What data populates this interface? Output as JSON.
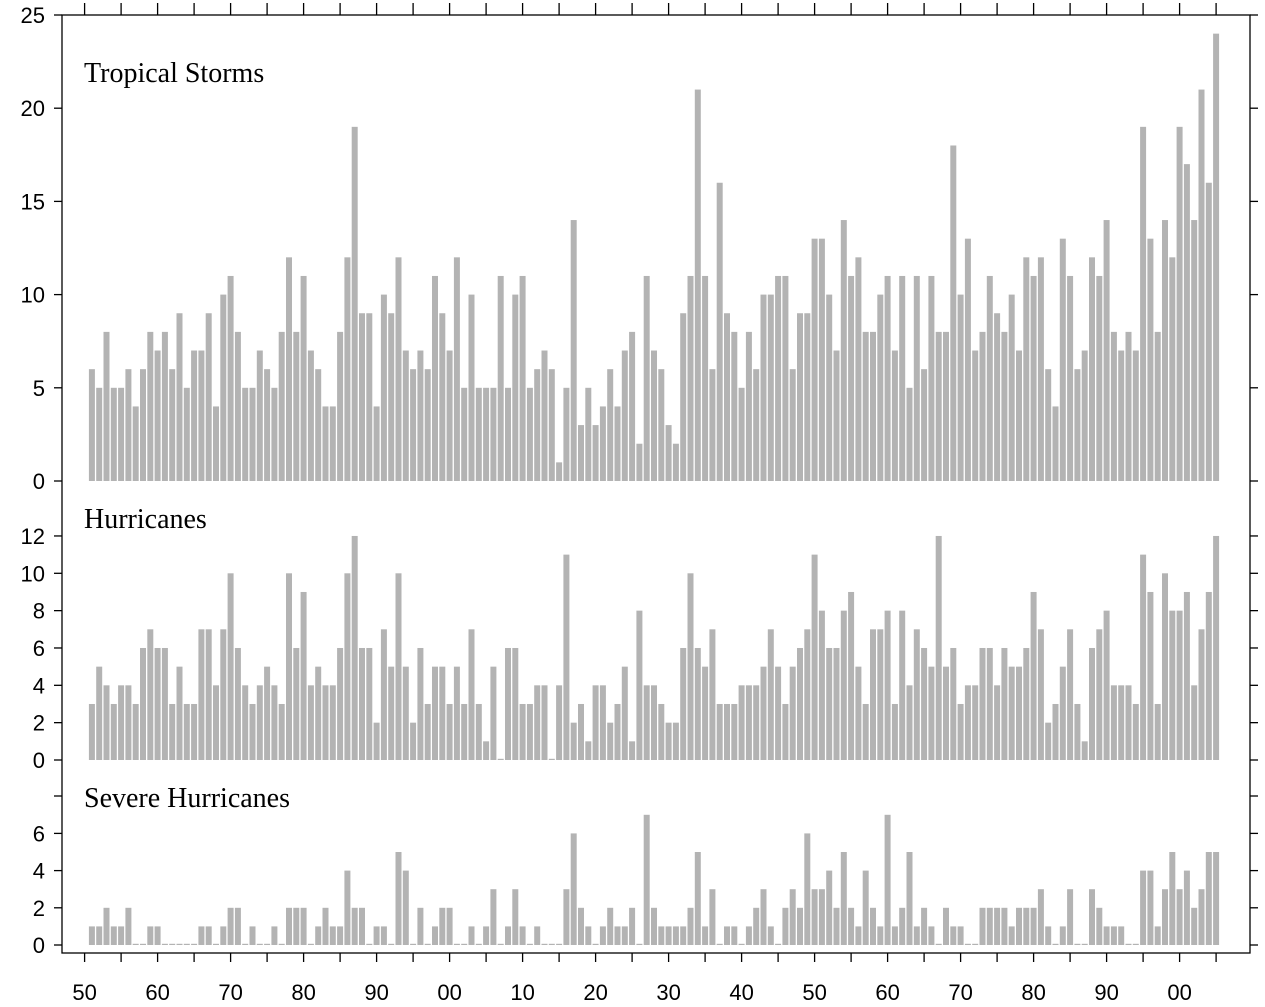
{
  "chart_data": {
    "type": "bar",
    "x": [
      1851,
      1852,
      1853,
      1854,
      1855,
      1856,
      1857,
      1858,
      1859,
      1860,
      1861,
      1862,
      1863,
      1864,
      1865,
      1866,
      1867,
      1868,
      1869,
      1870,
      1871,
      1872,
      1873,
      1874,
      1875,
      1876,
      1877,
      1878,
      1879,
      1880,
      1881,
      1882,
      1883,
      1884,
      1885,
      1886,
      1887,
      1888,
      1889,
      1890,
      1891,
      1892,
      1893,
      1894,
      1895,
      1896,
      1897,
      1898,
      1899,
      1900,
      1901,
      1902,
      1903,
      1904,
      1905,
      1906,
      1907,
      1908,
      1909,
      1910,
      1911,
      1912,
      1913,
      1914,
      1915,
      1916,
      1917,
      1918,
      1919,
      1920,
      1921,
      1922,
      1923,
      1924,
      1925,
      1926,
      1927,
      1928,
      1929,
      1930,
      1931,
      1932,
      1933,
      1934,
      1935,
      1936,
      1937,
      1938,
      1939,
      1940,
      1941,
      1942,
      1943,
      1944,
      1945,
      1946,
      1947,
      1948,
      1949,
      1950,
      1951,
      1952,
      1953,
      1954,
      1955,
      1956,
      1957,
      1958,
      1959,
      1960,
      1961,
      1962,
      1963,
      1964,
      1965,
      1966,
      1967,
      1968,
      1969,
      1970,
      1971,
      1972,
      1973,
      1974,
      1975,
      1976,
      1977,
      1978,
      1979,
      1980,
      1981,
      1982,
      1983,
      1984,
      1985,
      1986,
      1987,
      1988,
      1989,
      1990,
      1991,
      1992,
      1993,
      1994,
      1995,
      1996,
      1997,
      1998,
      1999,
      2000,
      2001,
      2002,
      2003,
      2004,
      2005
    ],
    "x_ticks": [
      "50",
      "60",
      "70",
      "80",
      "90",
      "00",
      "10",
      "20",
      "30",
      "40",
      "50",
      "60",
      "70",
      "80",
      "90",
      "00"
    ],
    "series": [
      {
        "name": "Tropical Storms",
        "color": "#b3b3b3",
        "ylim": [
          0,
          25
        ],
        "yticks": [
          "0",
          "5",
          "10",
          "15",
          "20",
          "25"
        ],
        "values": [
          6,
          5,
          8,
          5,
          5,
          6,
          4,
          6,
          8,
          7,
          8,
          6,
          9,
          5,
          7,
          7,
          9,
          4,
          10,
          11,
          8,
          5,
          5,
          7,
          6,
          5,
          8,
          12,
          8,
          11,
          7,
          6,
          4,
          4,
          8,
          12,
          19,
          9,
          9,
          4,
          10,
          9,
          12,
          7,
          6,
          7,
          6,
          11,
          9,
          7,
          12,
          5,
          10,
          5,
          5,
          5,
          11,
          5,
          10,
          11,
          5,
          6,
          7,
          6,
          1,
          5,
          14,
          3,
          5,
          3,
          4,
          6,
          4,
          7,
          8,
          2,
          11,
          7,
          6,
          3,
          2,
          9,
          11,
          21,
          11,
          6,
          16,
          9,
          8,
          5,
          8,
          6,
          10,
          10,
          11,
          11,
          6,
          9,
          9,
          13,
          13,
          10,
          7,
          14,
          11,
          12,
          8,
          8,
          10,
          11,
          7,
          11,
          5,
          11,
          6,
          11,
          8,
          8,
          18,
          10,
          13,
          7,
          8,
          11,
          9,
          8,
          10,
          7,
          12,
          11,
          12,
          6,
          4,
          13,
          11,
          6,
          7,
          12,
          11,
          14,
          8,
          7,
          8,
          7,
          19,
          13,
          8,
          14,
          12,
          19,
          17,
          14,
          21,
          16,
          24
        ]
      },
      {
        "name": "Hurricanes",
        "color": "#b3b3b3",
        "ylim": [
          0,
          12
        ],
        "yticks": [
          "0",
          "2",
          "4",
          "6",
          "8",
          "10",
          "12"
        ],
        "values": [
          3,
          5,
          4,
          3,
          4,
          4,
          3,
          6,
          7,
          6,
          6,
          3,
          5,
          3,
          3,
          7,
          7,
          4,
          7,
          10,
          6,
          4,
          3,
          4,
          5,
          4,
          3,
          10,
          6,
          9,
          4,
          5,
          4,
          4,
          6,
          10,
          12,
          6,
          6,
          2,
          7,
          5,
          10,
          5,
          2,
          6,
          3,
          5,
          5,
          3,
          5,
          3,
          7,
          3,
          1,
          5,
          0,
          6,
          6,
          3,
          3,
          4,
          4,
          0,
          4,
          11,
          2,
          3,
          1,
          4,
          4,
          2,
          3,
          5,
          1,
          8,
          4,
          4,
          3,
          2,
          2,
          6,
          10,
          6,
          5,
          7,
          3,
          3,
          3,
          4,
          4,
          4,
          5,
          7,
          5,
          3,
          5,
          6,
          7,
          11,
          8,
          6,
          6,
          8,
          9,
          5,
          3,
          7,
          7,
          8,
          3,
          8,
          4,
          7,
          6,
          5,
          12,
          5,
          6,
          3,
          4,
          4,
          6,
          6,
          4,
          6,
          5,
          5,
          6,
          9,
          7,
          2,
          3,
          5,
          7,
          3,
          1,
          6,
          7,
          8,
          4,
          4,
          4,
          3,
          11,
          9,
          3,
          10,
          8,
          8,
          9,
          4,
          7,
          9,
          12
        ]
      },
      {
        "name": "Severe Hurricanes",
        "color": "#b3b3b3",
        "ylim": [
          0,
          7
        ],
        "yticks": [
          "0",
          "2",
          "4",
          "6"
        ],
        "values": [
          1,
          1,
          2,
          1,
          1,
          2,
          0,
          0,
          1,
          1,
          0,
          0,
          0,
          0,
          0,
          1,
          1,
          0,
          1,
          2,
          2,
          0,
          1,
          0,
          0,
          1,
          0,
          2,
          2,
          2,
          0,
          1,
          2,
          1,
          1,
          4,
          2,
          2,
          0,
          1,
          1,
          0,
          5,
          4,
          0,
          2,
          0,
          1,
          2,
          2,
          0,
          0,
          1,
          0,
          1,
          3,
          0,
          1,
          3,
          1,
          0,
          1,
          0,
          0,
          0,
          3,
          6,
          2,
          1,
          0,
          1,
          2,
          1,
          1,
          2,
          0,
          7,
          2,
          1,
          1,
          1,
          1,
          2,
          5,
          1,
          3,
          0,
          1,
          1,
          0,
          1,
          2,
          3,
          1,
          0,
          2,
          3,
          2,
          6,
          3,
          3,
          4,
          2,
          5,
          2,
          1,
          4,
          2,
          1,
          7,
          1,
          2,
          5,
          1,
          2,
          1,
          0,
          2,
          1,
          1,
          0,
          0,
          2,
          2,
          2,
          2,
          1,
          2,
          2,
          2,
          3,
          1,
          0,
          1,
          3,
          0,
          0,
          3,
          2,
          1,
          1,
          1,
          0,
          0,
          4,
          4,
          1,
          3,
          5,
          3,
          4,
          2,
          3,
          5,
          5
        ]
      }
    ]
  }
}
